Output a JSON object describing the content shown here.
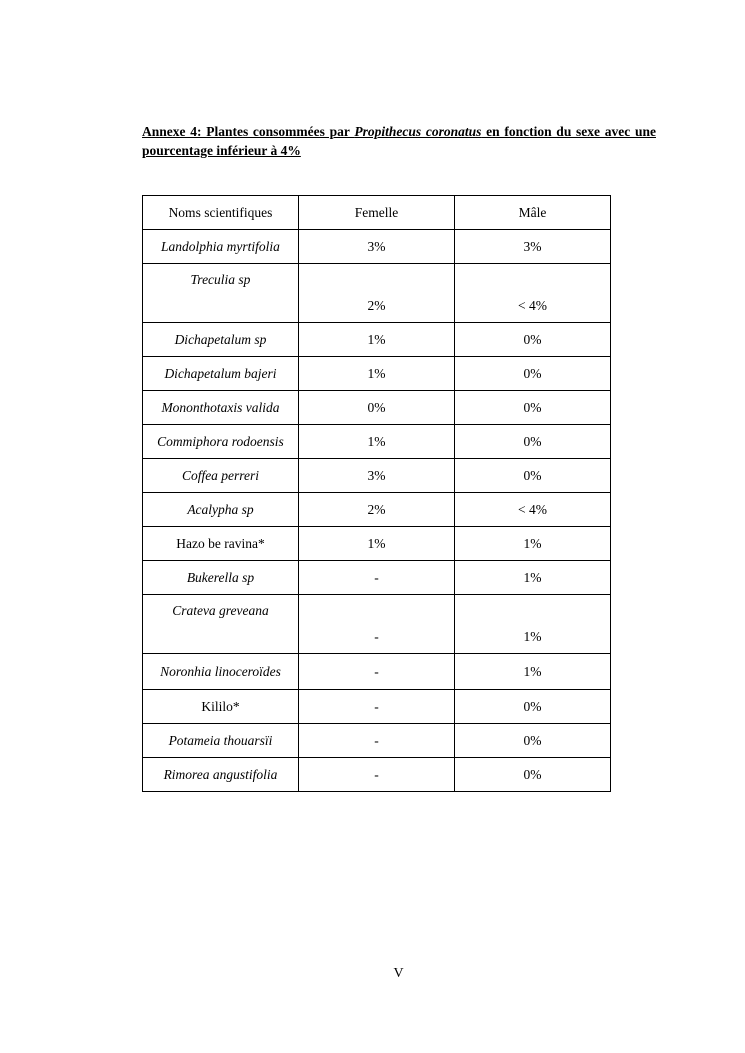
{
  "title": {
    "prefix": "Annexe 4: Plantes consommées par ",
    "species": "Propithecus coronatus",
    "suffix": " en fonction du sexe avec une pourcentage inférieur à 4%"
  },
  "table": {
    "headers": [
      "Noms scientifiques",
      "Femelle",
      "Mâle"
    ],
    "rows": [
      {
        "name": "Landolphia myrtifolia",
        "italic": true,
        "femelle": "3%",
        "male": "3%"
      },
      {
        "name": "Treculia sp",
        "italic": true,
        "femelle": "2%",
        "male": "< 4%",
        "tall": true
      },
      {
        "name": "Dichapetalum sp",
        "italic": true,
        "femelle": "1%",
        "male": "0%"
      },
      {
        "name": "Dichapetalum bajeri",
        "italic": true,
        "femelle": "1%",
        "male": "0%"
      },
      {
        "name": "Mononthotaxis valida",
        "italic": true,
        "femelle": "0%",
        "male": "0%"
      },
      {
        "name": "Commiphora rodoensis",
        "italic": true,
        "femelle": "1%",
        "male": "0%"
      },
      {
        "name": "Coffea perreri",
        "italic": true,
        "femelle": "3%",
        "male": "0%"
      },
      {
        "name": "Acalypha sp",
        "italic": true,
        "femelle": "2%",
        "male": "< 4%"
      },
      {
        "name": "Hazo be ravina*",
        "italic": false,
        "femelle": "1%",
        "male": "1%"
      },
      {
        "name": "Bukerella sp",
        "italic": true,
        "femelle": "-",
        "male": "1%"
      },
      {
        "name": "Crateva greveana",
        "italic": true,
        "femelle": "-",
        "male": "1%",
        "tall": true
      },
      {
        "name": "Noronhia linoceroïdes",
        "italic": true,
        "femelle": "-",
        "male": "1%",
        "mid": true
      },
      {
        "name": "Kililo*",
        "italic": false,
        "femelle": "-",
        "male": "0%"
      },
      {
        "name": "Potameia thouarsïi",
        "italic": true,
        "femelle": "-",
        "male": "0%"
      },
      {
        "name": "Rimorea angustifolia",
        "italic": true,
        "femelle": "-",
        "male": "0%"
      }
    ]
  },
  "page_number": "V"
}
